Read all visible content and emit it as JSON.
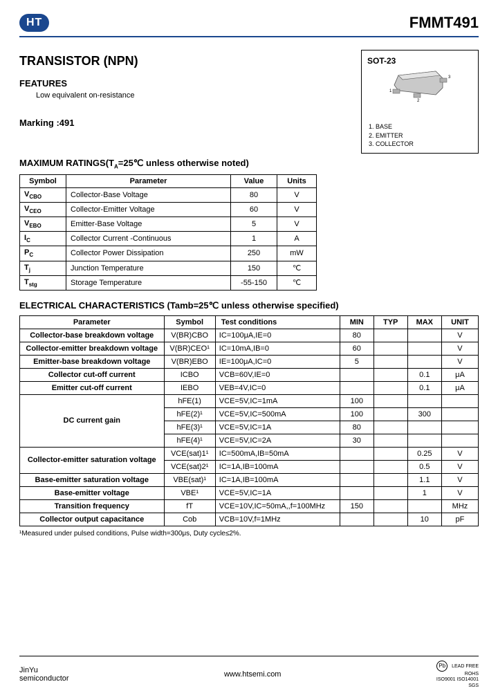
{
  "header": {
    "logo": "HT",
    "partNumber": "FMMT491"
  },
  "title": "TRANSISTOR (NPN)",
  "features": {
    "heading": "FEATURES",
    "item": "Low equivalent on-resistance"
  },
  "package": {
    "name": "SOT-23",
    "pin1": "1. BASE",
    "pin2": "2. EMITTER",
    "pin3": "3. COLLECTOR"
  },
  "marking": "Marking :491",
  "ratings": {
    "title": "MAXIMUM RATINGS(T",
    "titleSub": "A",
    "titleCont": "=25℃ unless otherwise noted)",
    "headers": {
      "sym": "Symbol",
      "param": "Parameter",
      "val": "Value",
      "unit": "Units"
    },
    "rows": [
      {
        "sym": "V",
        "symSub": "CBO",
        "param": "Collector-Base Voltage",
        "val": "80",
        "unit": "V"
      },
      {
        "sym": "V",
        "symSub": "CEO",
        "param": "Collector-Emitter Voltage",
        "val": "60",
        "unit": "V"
      },
      {
        "sym": "V",
        "symSub": "EBO",
        "param": "Emitter-Base Voltage",
        "val": "5",
        "unit": "V"
      },
      {
        "sym": "I",
        "symSub": "C",
        "param": "Collector Current -Continuous",
        "val": "1",
        "unit": "A"
      },
      {
        "sym": "P",
        "symSub": "C",
        "param": "Collector Power Dissipation",
        "val": "250",
        "unit": "mW"
      },
      {
        "sym": "T",
        "symSub": "j",
        "param": "Junction Temperature",
        "val": "150",
        "unit": "℃"
      },
      {
        "sym": "T",
        "symSub": "stg",
        "param": "Storage Temperature",
        "val": "-55-150",
        "unit": "℃"
      }
    ]
  },
  "elec": {
    "title": "ELECTRICAL CHARACTERISTICS (Tamb=25℃ unless otherwise specified)",
    "headers": {
      "param": "Parameter",
      "sym": "Symbol",
      "test": "Test    conditions",
      "min": "MIN",
      "typ": "TYP",
      "max": "MAX",
      "unit": "UNIT"
    },
    "rows": [
      {
        "param": "Collector-base breakdown voltage",
        "sym": "V(BR)CBO",
        "test": "IC=100μA,IE=0",
        "min": "80",
        "typ": "",
        "max": "",
        "unit": "V",
        "rs": 1
      },
      {
        "param": "Collector-emitter breakdown voltage",
        "sym": "V(BR)CEO¹",
        "test": "IC=10mA,IB=0",
        "min": "60",
        "typ": "",
        "max": "",
        "unit": "V",
        "rs": 1
      },
      {
        "param": "Emitter-base breakdown voltage",
        "sym": "V(BR)EBO",
        "test": "IE=100μA,IC=0",
        "min": "5",
        "typ": "",
        "max": "",
        "unit": "V",
        "rs": 1
      },
      {
        "param": "Collector cut-off current",
        "sym": "ICBO",
        "test": "VCB=60V,IE=0",
        "min": "",
        "typ": "",
        "max": "0.1",
        "unit": "μA",
        "rs": 1,
        "sep": true
      },
      {
        "param": "Emitter cut-off current",
        "sym": "IEBO",
        "test": "VEB=4V,IC=0",
        "min": "",
        "typ": "",
        "max": "0.1",
        "unit": "μA",
        "rs": 1,
        "sep": true
      }
    ],
    "dcGain": {
      "label": "DC current gain",
      "rows": [
        {
          "sym": "hFE(1)",
          "test": "VCE=5V,IC=1mA",
          "min": "100",
          "typ": "",
          "max": "",
          "unit": ""
        },
        {
          "sym": "hFE(2)¹",
          "test": "VCE=5V,IC=500mA",
          "min": "100",
          "typ": "",
          "max": "300",
          "unit": ""
        },
        {
          "sym": "hFE(3)¹",
          "test": "VCE=5V,IC=1A",
          "min": "80",
          "typ": "",
          "max": "",
          "unit": ""
        },
        {
          "sym": "hFE(4)¹",
          "test": "VCE=5V,IC=2A",
          "min": "30",
          "typ": "",
          "max": "",
          "unit": ""
        }
      ]
    },
    "sat": {
      "ce": "Collector-emitter saturation voltage",
      "be": "Base-emitter saturation voltage",
      "rows": [
        {
          "sym": "VCE(sat)1¹",
          "test": "IC=500mA,IB=50mA",
          "min": "",
          "typ": "",
          "max": "0.25",
          "unit": "V"
        },
        {
          "sym": "VCE(sat)2¹",
          "test": "IC=1A,IB=100mA",
          "min": "",
          "typ": "",
          "max": "0.5",
          "unit": "V"
        },
        {
          "sym": "VBE(sat)¹",
          "test": "IC=1A,IB=100mA",
          "min": "",
          "typ": "",
          "max": "1.1",
          "unit": "V"
        }
      ]
    },
    "tail": [
      {
        "param": "Base-emitter voltage",
        "sym": "VBE¹",
        "test": "VCE=5V,IC=1A",
        "min": "",
        "typ": "",
        "max": "1",
        "unit": "V",
        "sep": true
      },
      {
        "param": "Transition frequency",
        "sym": "fT",
        "test": "VCE=10V,IC=50mA,,f=100MHz",
        "min": "150",
        "typ": "",
        "max": "",
        "unit": "MHz",
        "sep": true
      },
      {
        "param": "Collector output capacitance",
        "sym": "Cob",
        "test": "VCB=10V,f=1MHz",
        "min": "",
        "typ": "",
        "max": "10",
        "unit": "pF",
        "sep": true
      }
    ],
    "note": "¹Measured under pulsed conditions, Pulse width=300μs, Duty cycle≤2%."
  },
  "footer": {
    "left1": "JinYu",
    "left2": "semiconductor",
    "center": "www.htsemi.com",
    "cert": "LEAD FREE\nROHS\nISO9001 ISO14001\nSGS"
  }
}
